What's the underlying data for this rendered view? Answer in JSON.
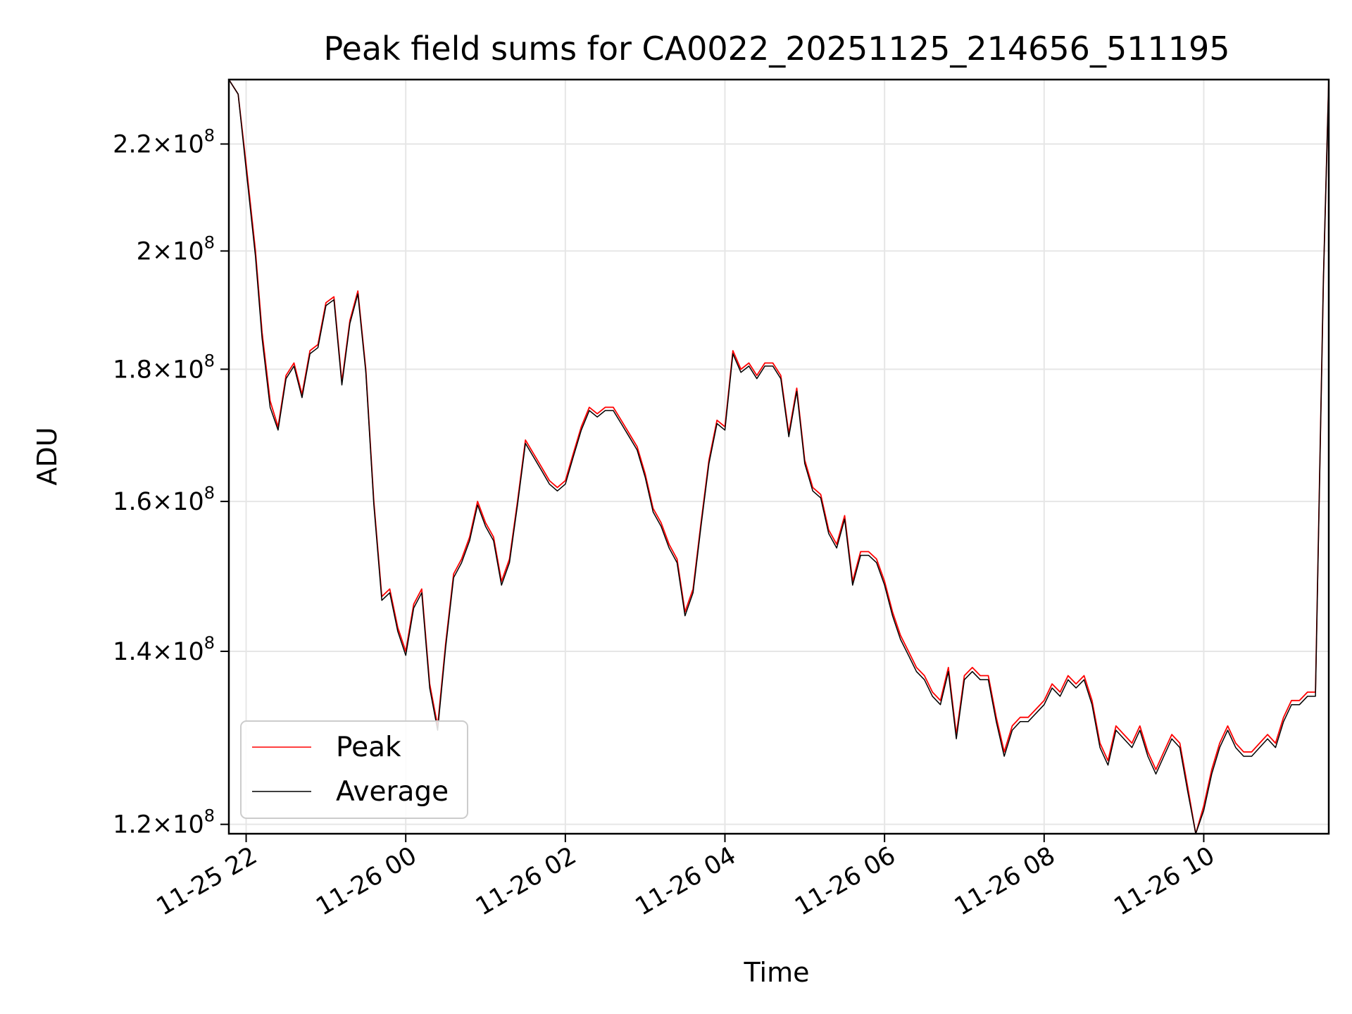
{
  "chart_data": {
    "type": "line",
    "title": "Peak field sums for CA0022_20251125_214656_511195",
    "xlabel": "Time",
    "ylabel": "ADU",
    "x_range": [
      "2025-11-25 21:47",
      "2025-11-26 11:34"
    ],
    "ylim": [
      119000000,
      233000000
    ],
    "y_scale": "log",
    "grid": true,
    "legend_position": "lower-left",
    "x_ticks": [
      {
        "t": "2025-11-25 22:00",
        "label": "11-25 22"
      },
      {
        "t": "2025-11-26 00:00",
        "label": "11-26 00"
      },
      {
        "t": "2025-11-26 02:00",
        "label": "11-26 02"
      },
      {
        "t": "2025-11-26 04:00",
        "label": "11-26 04"
      },
      {
        "t": "2025-11-26 06:00",
        "label": "11-26 06"
      },
      {
        "t": "2025-11-26 08:00",
        "label": "11-26 08"
      },
      {
        "t": "2025-11-26 10:00",
        "label": "11-26 10"
      }
    ],
    "y_ticks": [
      {
        "value": 120000000,
        "mantissa": "1.2",
        "base": "10",
        "exp": "8"
      },
      {
        "value": 140000000,
        "mantissa": "1.4",
        "base": "10",
        "exp": "8"
      },
      {
        "value": 160000000,
        "mantissa": "1.6",
        "base": "10",
        "exp": "8"
      },
      {
        "value": 180000000,
        "mantissa": "1.8",
        "base": "10",
        "exp": "8"
      },
      {
        "value": 200000000,
        "mantissa": "2",
        "base": "10",
        "exp": "8"
      },
      {
        "value": 220000000,
        "mantissa": "2.2",
        "base": "10",
        "exp": "8"
      }
    ],
    "series": [
      {
        "name": "Peak",
        "color": "#ff0000",
        "x": [
          "2025-11-25 21:47",
          "2025-11-25 21:54",
          "2025-11-25 22:00",
          "2025-11-25 22:07",
          "2025-11-25 22:12",
          "2025-11-25 22:18",
          "2025-11-25 22:24",
          "2025-11-25 22:30",
          "2025-11-25 22:36",
          "2025-11-25 22:42",
          "2025-11-25 22:48",
          "2025-11-25 22:54",
          "2025-11-25 23:00",
          "2025-11-25 23:06",
          "2025-11-25 23:12",
          "2025-11-25 23:18",
          "2025-11-25 23:24",
          "2025-11-25 23:30",
          "2025-11-25 23:36",
          "2025-11-25 23:42",
          "2025-11-25 23:48",
          "2025-11-25 23:54",
          "2025-11-26 00:00",
          "2025-11-26 00:06",
          "2025-11-26 00:12",
          "2025-11-26 00:18",
          "2025-11-26 00:24",
          "2025-11-26 00:30",
          "2025-11-26 00:36",
          "2025-11-26 00:42",
          "2025-11-26 00:48",
          "2025-11-26 00:54",
          "2025-11-26 01:00",
          "2025-11-26 01:06",
          "2025-11-26 01:12",
          "2025-11-26 01:18",
          "2025-11-26 01:24",
          "2025-11-26 01:30",
          "2025-11-26 01:36",
          "2025-11-26 01:42",
          "2025-11-26 01:48",
          "2025-11-26 01:54",
          "2025-11-26 02:00",
          "2025-11-26 02:06",
          "2025-11-26 02:12",
          "2025-11-26 02:18",
          "2025-11-26 02:24",
          "2025-11-26 02:30",
          "2025-11-26 02:36",
          "2025-11-26 02:42",
          "2025-11-26 02:48",
          "2025-11-26 02:54",
          "2025-11-26 03:00",
          "2025-11-26 03:06",
          "2025-11-26 03:12",
          "2025-11-26 03:18",
          "2025-11-26 03:24",
          "2025-11-26 03:30",
          "2025-11-26 03:36",
          "2025-11-26 03:42",
          "2025-11-26 03:48",
          "2025-11-26 03:54",
          "2025-11-26 04:00",
          "2025-11-26 04:06",
          "2025-11-26 04:12",
          "2025-11-26 04:18",
          "2025-11-26 04:24",
          "2025-11-26 04:30",
          "2025-11-26 04:36",
          "2025-11-26 04:42",
          "2025-11-26 04:48",
          "2025-11-26 04:54",
          "2025-11-26 05:00",
          "2025-11-26 05:06",
          "2025-11-26 05:12",
          "2025-11-26 05:18",
          "2025-11-26 05:24",
          "2025-11-26 05:30",
          "2025-11-26 05:36",
          "2025-11-26 05:42",
          "2025-11-26 05:48",
          "2025-11-26 05:54",
          "2025-11-26 06:00",
          "2025-11-26 06:06",
          "2025-11-26 06:12",
          "2025-11-26 06:18",
          "2025-11-26 06:24",
          "2025-11-26 06:30",
          "2025-11-26 06:36",
          "2025-11-26 06:42",
          "2025-11-26 06:48",
          "2025-11-26 06:54",
          "2025-11-26 07:00",
          "2025-11-26 07:06",
          "2025-11-26 07:12",
          "2025-11-26 07:18",
          "2025-11-26 07:24",
          "2025-11-26 07:30",
          "2025-11-26 07:36",
          "2025-11-26 07:42",
          "2025-11-26 07:48",
          "2025-11-26 07:54",
          "2025-11-26 08:00",
          "2025-11-26 08:06",
          "2025-11-26 08:12",
          "2025-11-26 08:18",
          "2025-11-26 08:24",
          "2025-11-26 08:30",
          "2025-11-26 08:36",
          "2025-11-26 08:42",
          "2025-11-26 08:48",
          "2025-11-26 08:54",
          "2025-11-26 09:00",
          "2025-11-26 09:06",
          "2025-11-26 09:12",
          "2025-11-26 09:18",
          "2025-11-26 09:24",
          "2025-11-26 09:30",
          "2025-11-26 09:36",
          "2025-11-26 09:42",
          "2025-11-26 09:48",
          "2025-11-26 09:54",
          "2025-11-26 10:00",
          "2025-11-26 10:06",
          "2025-11-26 10:12",
          "2025-11-26 10:18",
          "2025-11-26 10:24",
          "2025-11-26 10:30",
          "2025-11-26 10:36",
          "2025-11-26 10:42",
          "2025-11-26 10:48",
          "2025-11-26 10:54",
          "2025-11-26 11:00",
          "2025-11-26 11:06",
          "2025-11-26 11:12",
          "2025-11-26 11:18",
          "2025-11-26 11:24",
          "2025-11-26 11:30",
          "2025-11-26 11:34"
        ],
        "values": [
          233000000,
          230000000,
          216000000,
          200000000,
          186000000,
          175000000,
          171000000,
          179000000,
          181000000,
          176000000,
          183000000,
          184000000,
          191000000,
          192000000,
          178000000,
          188000000,
          193000000,
          180000000,
          160000000,
          147000000,
          148000000,
          143000000,
          140000000,
          146000000,
          148000000,
          136000000,
          131000000,
          141000000,
          150000000,
          152000000,
          155000000,
          160000000,
          157000000,
          155000000,
          149000000,
          152000000,
          160000000,
          169000000,
          167000000,
          165000000,
          163000000,
          162000000,
          163000000,
          167000000,
          171000000,
          174000000,
          173000000,
          174000000,
          174000000,
          172000000,
          170000000,
          168000000,
          164000000,
          159000000,
          157000000,
          154000000,
          152000000,
          145000000,
          148000000,
          157000000,
          166000000,
          172000000,
          171000000,
          183000000,
          180000000,
          181000000,
          179000000,
          181000000,
          181000000,
          179000000,
          170000000,
          177000000,
          166000000,
          162000000,
          161000000,
          156000000,
          154000000,
          158000000,
          149000000,
          153000000,
          153000000,
          152000000,
          149000000,
          145000000,
          142000000,
          140000000,
          138000000,
          137000000,
          135000000,
          134000000,
          138000000,
          130000000,
          137000000,
          138000000,
          137000000,
          137000000,
          132000000,
          128000000,
          131000000,
          132000000,
          132000000,
          133000000,
          134000000,
          136000000,
          135000000,
          137000000,
          136000000,
          137000000,
          134000000,
          129000000,
          127000000,
          131000000,
          130000000,
          129000000,
          131000000,
          128000000,
          126000000,
          128000000,
          130000000,
          129000000,
          124000000,
          119000000,
          122000000,
          126000000,
          129000000,
          131000000,
          129000000,
          128000000,
          128000000,
          129000000,
          130000000,
          129000000,
          132000000,
          134000000,
          134000000,
          135000000,
          135000000,
          195000000,
          233000000
        ]
      },
      {
        "name": "Average",
        "color": "#000000",
        "x": [
          "2025-11-25 21:47",
          "2025-11-25 21:54",
          "2025-11-25 22:00",
          "2025-11-25 22:07",
          "2025-11-25 22:12",
          "2025-11-25 22:18",
          "2025-11-25 22:24",
          "2025-11-25 22:30",
          "2025-11-25 22:36",
          "2025-11-25 22:42",
          "2025-11-25 22:48",
          "2025-11-25 22:54",
          "2025-11-25 23:00",
          "2025-11-25 23:06",
          "2025-11-25 23:12",
          "2025-11-25 23:18",
          "2025-11-25 23:24",
          "2025-11-25 23:30",
          "2025-11-25 23:36",
          "2025-11-25 23:42",
          "2025-11-25 23:48",
          "2025-11-25 23:54",
          "2025-11-26 00:00",
          "2025-11-26 00:06",
          "2025-11-26 00:12",
          "2025-11-26 00:18",
          "2025-11-26 00:24",
          "2025-11-26 00:30",
          "2025-11-26 00:36",
          "2025-11-26 00:42",
          "2025-11-26 00:48",
          "2025-11-26 00:54",
          "2025-11-26 01:00",
          "2025-11-26 01:06",
          "2025-11-26 01:12",
          "2025-11-26 01:18",
          "2025-11-26 01:24",
          "2025-11-26 01:30",
          "2025-11-26 01:36",
          "2025-11-26 01:42",
          "2025-11-26 01:48",
          "2025-11-26 01:54",
          "2025-11-26 02:00",
          "2025-11-26 02:06",
          "2025-11-26 02:12",
          "2025-11-26 02:18",
          "2025-11-26 02:24",
          "2025-11-26 02:30",
          "2025-11-26 02:36",
          "2025-11-26 02:42",
          "2025-11-26 02:48",
          "2025-11-26 02:54",
          "2025-11-26 03:00",
          "2025-11-26 03:06",
          "2025-11-26 03:12",
          "2025-11-26 03:18",
          "2025-11-26 03:24",
          "2025-11-26 03:30",
          "2025-11-26 03:36",
          "2025-11-26 03:42",
          "2025-11-26 03:48",
          "2025-11-26 03:54",
          "2025-11-26 04:00",
          "2025-11-26 04:06",
          "2025-11-26 04:12",
          "2025-11-26 04:18",
          "2025-11-26 04:24",
          "2025-11-26 04:30",
          "2025-11-26 04:36",
          "2025-11-26 04:42",
          "2025-11-26 04:48",
          "2025-11-26 04:54",
          "2025-11-26 05:00",
          "2025-11-26 05:06",
          "2025-11-26 05:12",
          "2025-11-26 05:18",
          "2025-11-26 05:24",
          "2025-11-26 05:30",
          "2025-11-26 05:36",
          "2025-11-26 05:42",
          "2025-11-26 05:48",
          "2025-11-26 05:54",
          "2025-11-26 06:00",
          "2025-11-26 06:06",
          "2025-11-26 06:12",
          "2025-11-26 06:18",
          "2025-11-26 06:24",
          "2025-11-26 06:30",
          "2025-11-26 06:36",
          "2025-11-26 06:42",
          "2025-11-26 06:48",
          "2025-11-26 06:54",
          "2025-11-26 07:00",
          "2025-11-26 07:06",
          "2025-11-26 07:12",
          "2025-11-26 07:18",
          "2025-11-26 07:24",
          "2025-11-26 07:30",
          "2025-11-26 07:36",
          "2025-11-26 07:42",
          "2025-11-26 07:48",
          "2025-11-26 07:54",
          "2025-11-26 08:00",
          "2025-11-26 08:06",
          "2025-11-26 08:12",
          "2025-11-26 08:18",
          "2025-11-26 08:24",
          "2025-11-26 08:30",
          "2025-11-26 08:36",
          "2025-11-26 08:42",
          "2025-11-26 08:48",
          "2025-11-26 08:54",
          "2025-11-26 09:00",
          "2025-11-26 09:06",
          "2025-11-26 09:12",
          "2025-11-26 09:18",
          "2025-11-26 09:24",
          "2025-11-26 09:30",
          "2025-11-26 09:36",
          "2025-11-26 09:42",
          "2025-11-26 09:48",
          "2025-11-26 09:54",
          "2025-11-26 10:00",
          "2025-11-26 10:06",
          "2025-11-26 10:12",
          "2025-11-26 10:18",
          "2025-11-26 10:24",
          "2025-11-26 10:30",
          "2025-11-26 10:36",
          "2025-11-26 10:42",
          "2025-11-26 10:48",
          "2025-11-26 10:54",
          "2025-11-26 11:00",
          "2025-11-26 11:06",
          "2025-11-26 11:12",
          "2025-11-26 11:18",
          "2025-11-26 11:24",
          "2025-11-26 11:30",
          "2025-11-26 11:34"
        ],
        "values": [
          233000000,
          230000000,
          215000000,
          199000000,
          185000000,
          174000000,
          170500000,
          178500000,
          180500000,
          175500000,
          182500000,
          183500000,
          190500000,
          191500000,
          177500000,
          187500000,
          192500000,
          179500000,
          159500000,
          146500000,
          147500000,
          142500000,
          139500000,
          145500000,
          147500000,
          135500000,
          130500000,
          140500000,
          149500000,
          151500000,
          154500000,
          159500000,
          156500000,
          154500000,
          148500000,
          151500000,
          159500000,
          168500000,
          166500000,
          164500000,
          162500000,
          161500000,
          162500000,
          166500000,
          170500000,
          173500000,
          172500000,
          173500000,
          173500000,
          171500000,
          169500000,
          167500000,
          163500000,
          158500000,
          156500000,
          153500000,
          151500000,
          144500000,
          147500000,
          156500000,
          165500000,
          171500000,
          170500000,
          182500000,
          179500000,
          180500000,
          178500000,
          180500000,
          180500000,
          178500000,
          169500000,
          176500000,
          165500000,
          161500000,
          160500000,
          155500000,
          153500000,
          157500000,
          148500000,
          152500000,
          152500000,
          151500000,
          148500000,
          144500000,
          141500000,
          139500000,
          137500000,
          136500000,
          134500000,
          133500000,
          137500000,
          129500000,
          136500000,
          137500000,
          136500000,
          136500000,
          131500000,
          127500000,
          130500000,
          131500000,
          131500000,
          132500000,
          133500000,
          135500000,
          134500000,
          136500000,
          135500000,
          136500000,
          133500000,
          128500000,
          126500000,
          130500000,
          129500000,
          128500000,
          130500000,
          127500000,
          125500000,
          127500000,
          129500000,
          128500000,
          123500000,
          119000000,
          121500000,
          125500000,
          128500000,
          130500000,
          128500000,
          127500000,
          127500000,
          128500000,
          129500000,
          128500000,
          131500000,
          133500000,
          133500000,
          134500000,
          134500000,
          195000000,
          233000000
        ]
      }
    ]
  }
}
